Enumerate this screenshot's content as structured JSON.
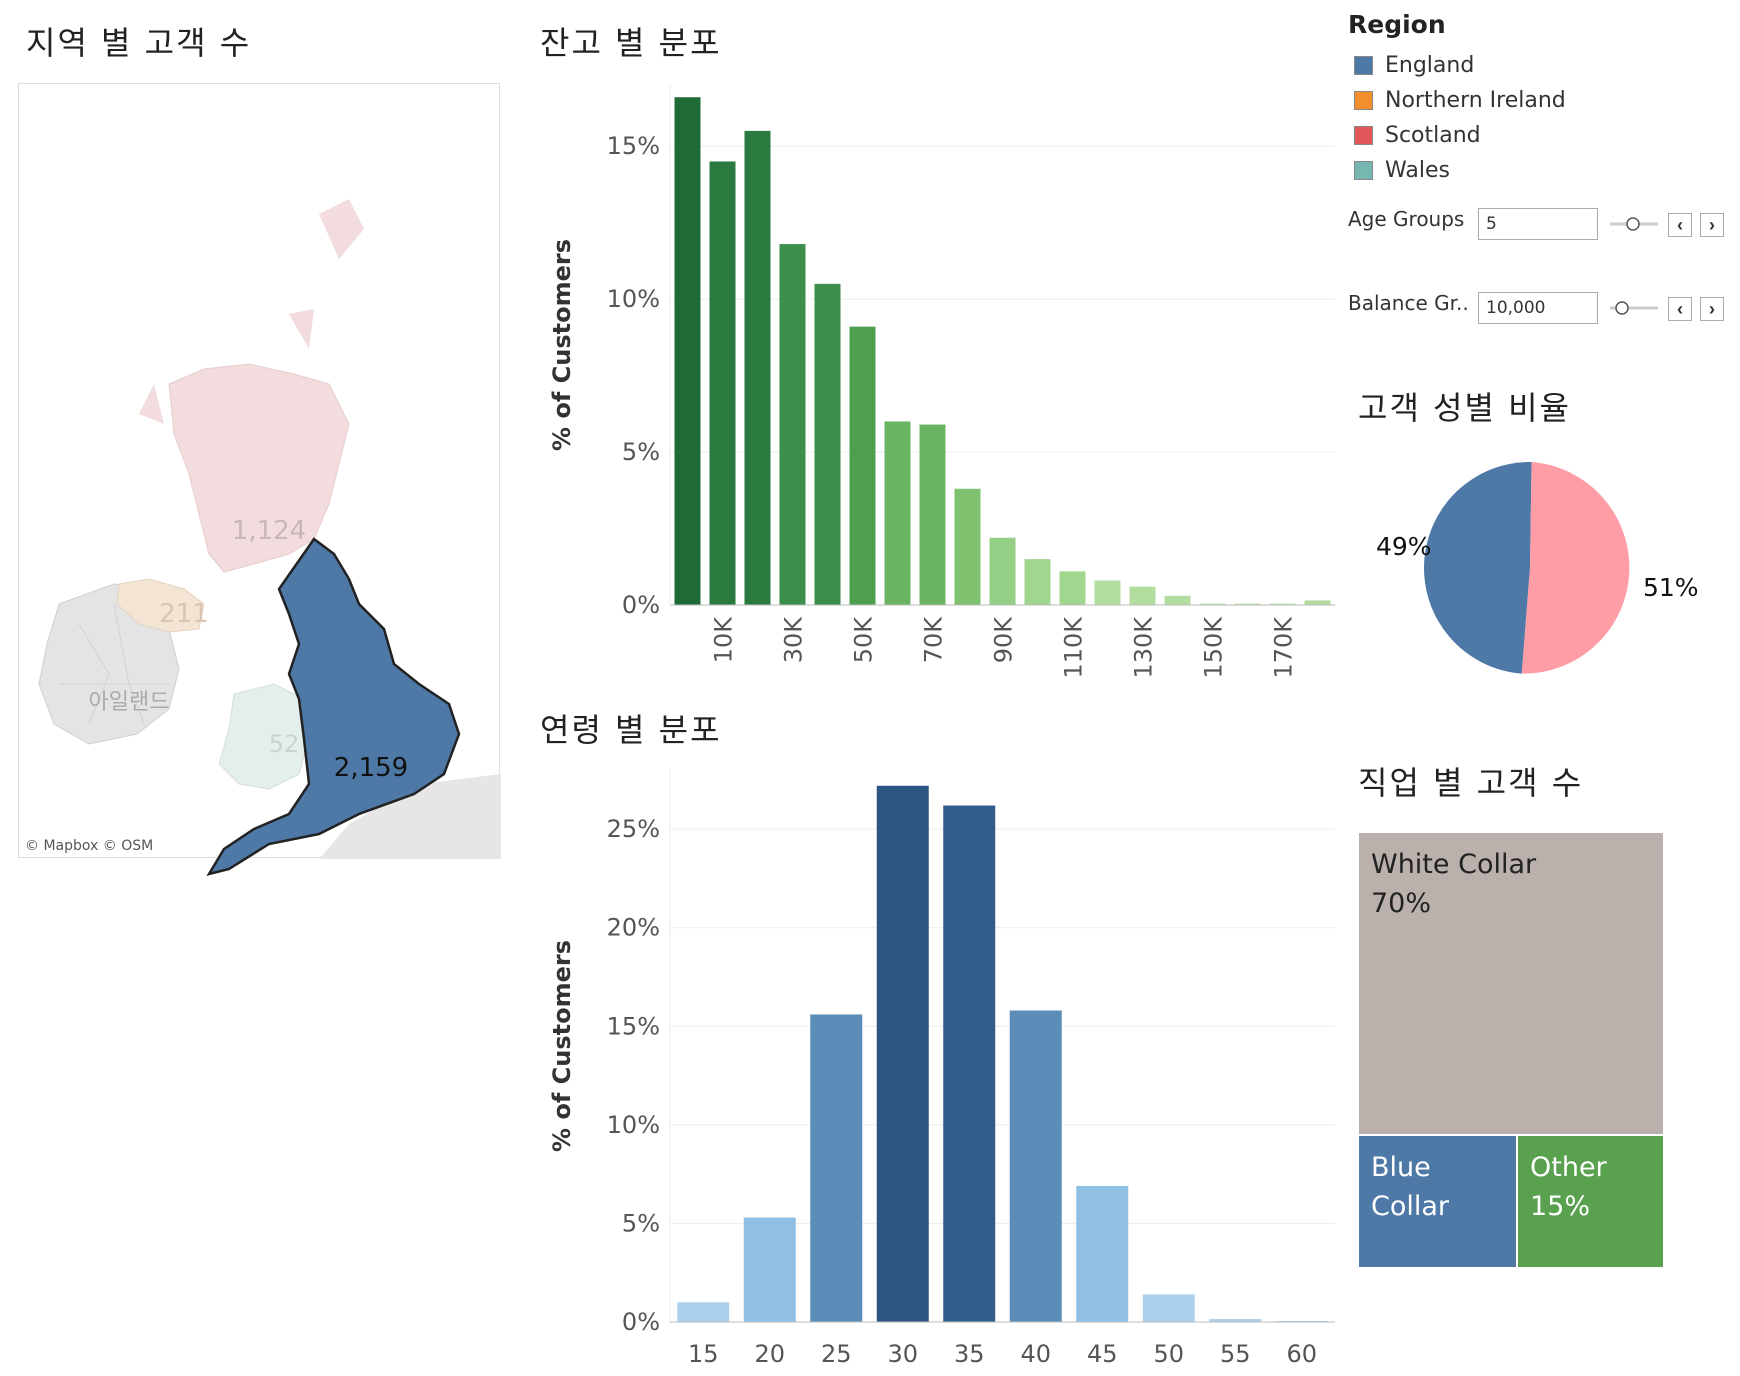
{
  "titles": {
    "map": "지역 별 고객 수",
    "balance": "잔고 별 분포",
    "age": "연령 별 분포",
    "gender": "고객 성별 비율",
    "job": "직업 별 고객 수"
  },
  "map": {
    "attribution": "© Mapbox © OSM",
    "ireland_label": "아일랜드",
    "regions": [
      {
        "name": "England",
        "label": "2,159",
        "color": "#4e79a7"
      },
      {
        "name": "Scotland",
        "label": "1,124",
        "color": "#e15759"
      },
      {
        "name": "Northern Ireland",
        "label": "211",
        "color": "#f28e2b"
      },
      {
        "name": "Wales",
        "label": "52",
        "color": "#76b7b2"
      }
    ]
  },
  "legend": {
    "title": "Region",
    "items": [
      {
        "label": "England",
        "color": "#4e79a7"
      },
      {
        "label": "Northern Ireland",
        "color": "#f28e2b"
      },
      {
        "label": "Scotland",
        "color": "#e15759"
      },
      {
        "label": "Wales",
        "color": "#76b7b2"
      }
    ]
  },
  "params": {
    "age_groups": {
      "label": "Age Groups",
      "value": "5"
    },
    "balance_groups": {
      "label": "Balance Gr..",
      "value": "10,000"
    }
  },
  "chart_data": [
    {
      "id": "balance",
      "type": "bar",
      "ylabel": "% of Customers",
      "ylim": [
        0,
        17
      ],
      "yticks": [
        "0%",
        "5%",
        "10%",
        "15%"
      ],
      "ytick_values": [
        0,
        5,
        10,
        15
      ],
      "x_tick_labels": [
        "10K",
        "30K",
        "50K",
        "70K",
        "90K",
        "110K",
        "130K",
        "150K",
        "170K"
      ],
      "x": [
        "0K",
        "10K",
        "20K",
        "30K",
        "40K",
        "50K",
        "60K",
        "70K",
        "80K",
        "90K",
        "100K",
        "110K",
        "120K",
        "130K",
        "140K",
        "150K",
        "160K",
        "170K",
        "180K"
      ],
      "values": [
        16.6,
        14.5,
        15.5,
        11.8,
        10.5,
        9.1,
        6.0,
        5.9,
        3.8,
        2.2,
        1.5,
        1.1,
        0.8,
        0.6,
        0.3,
        0.05,
        0.05,
        0.05,
        0.15
      ],
      "colors": [
        "#1f6b35",
        "#2a7a3f",
        "#2a7a3f",
        "#3b8f4a",
        "#3b8f4a",
        "#4e9e50",
        "#6ab564",
        "#6ab564",
        "#7ec26f",
        "#93d085",
        "#a1d68f",
        "#a1d68f",
        "#b2dd9e",
        "#b2dd9e",
        "#b2dd9e",
        "#c5e6b4",
        "#c5e6b4",
        "#c5e6b4",
        "#b2dd9e"
      ],
      "grid": true
    },
    {
      "id": "age",
      "type": "bar",
      "ylabel": "% of Customers",
      "ylim": [
        0,
        28
      ],
      "yticks": [
        "0%",
        "5%",
        "10%",
        "15%",
        "20%",
        "25%"
      ],
      "ytick_values": [
        0,
        5,
        10,
        15,
        20,
        25
      ],
      "categories": [
        "15",
        "20",
        "25",
        "30",
        "35",
        "40",
        "45",
        "50",
        "55",
        "60"
      ],
      "values": [
        1.0,
        5.3,
        15.6,
        27.2,
        26.2,
        15.8,
        6.9,
        1.4,
        0.15,
        0.05
      ],
      "colors": [
        "#a9d1ef",
        "#8fbfe2",
        "#5b8db8",
        "#2c5582",
        "#305d8b",
        "#5b8db8",
        "#8fbfe2",
        "#a9d1ef",
        "#a9d1ef",
        "#a9d1ef"
      ],
      "grid": true
    },
    {
      "id": "gender",
      "type": "pie",
      "slices": [
        {
          "label": "49%",
          "value": 49,
          "color": "#4e79a7"
        },
        {
          "label": "51%",
          "value": 51,
          "color": "#ff9da7"
        }
      ]
    },
    {
      "id": "job",
      "type": "treemap",
      "cells": [
        {
          "label": "White Collar",
          "pct": "70%",
          "value": 70,
          "color": "#bab0ac"
        },
        {
          "label": "Blue Collar",
          "pct": "",
          "value": 15,
          "color": "#4e79a7"
        },
        {
          "label": "Other",
          "pct": "15%",
          "value": 15,
          "color": "#59a14f"
        }
      ]
    }
  ]
}
